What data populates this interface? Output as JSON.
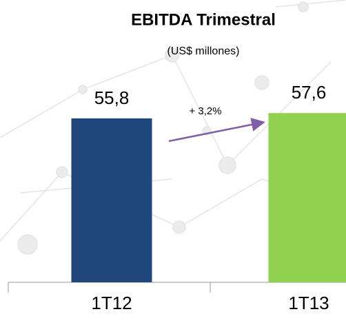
{
  "chart_data": {
    "type": "bar",
    "title": "EBITDA Trimestral",
    "subtitle": "(US$ millones)",
    "categories": [
      "1T12",
      "1T13"
    ],
    "values": [
      55.8,
      57.6
    ],
    "value_labels": [
      "55,8",
      "57,6"
    ],
    "colors": [
      "#1f477b",
      "#92d050"
    ],
    "ylim": [
      0,
      60
    ],
    "annotation": "+ 3,2%"
  }
}
